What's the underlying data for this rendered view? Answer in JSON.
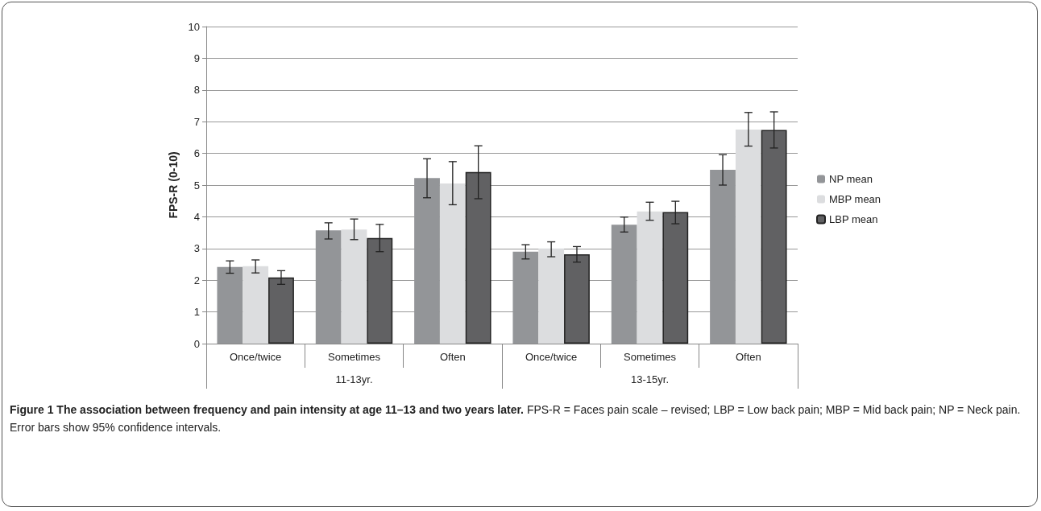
{
  "chart_data": {
    "type": "bar",
    "title": "Figure 1 The association between frequency and pain intensity at age 11–13 and two years later.",
    "ylabel": "FPS-R (0-10)",
    "categories": [
      "Once/twice",
      "Sometimes",
      "Often",
      "Once/twice",
      "Sometimes",
      "Often"
    ],
    "annotations": [
      "11-13yr.",
      "13-15yr.",
      "FPS-R = Faces pain scale – revised; LBP = Low back pain; MBP = Mid back pain; NP = Neck pain. Error bars show 95% confidence intervals."
    ],
    "series": [
      {
        "name": "NP mean",
        "color": "#939598",
        "values": [
          2.42,
          3.57,
          5.22,
          2.9,
          3.75,
          5.48
        ],
        "errors": [
          [
            2.22,
            2.61
          ],
          [
            3.3,
            3.81
          ],
          [
            4.6,
            5.83
          ],
          [
            2.67,
            3.12
          ],
          [
            3.52,
            3.99
          ],
          [
            5.0,
            5.96
          ]
        ]
      },
      {
        "name": "MBP mean",
        "color": "#dcdddf",
        "values": [
          2.44,
          3.6,
          5.05,
          3.0,
          4.17,
          6.75
        ],
        "errors": [
          [
            2.23,
            2.64
          ],
          [
            3.28,
            3.93
          ],
          [
            4.38,
            5.74
          ],
          [
            2.74,
            3.21
          ],
          [
            3.89,
            4.46
          ],
          [
            6.23,
            7.29
          ]
        ]
      },
      {
        "name": "LBP mean",
        "color": "#616163",
        "values": [
          2.09,
          3.33,
          5.41,
          2.82,
          4.15,
          6.74
        ],
        "errors": [
          [
            1.87,
            2.3
          ],
          [
            2.9,
            3.76
          ],
          [
            4.57,
            6.24
          ],
          [
            2.57,
            3.06
          ],
          [
            3.78,
            4.49
          ],
          [
            6.17,
            7.31
          ]
        ]
      }
    ],
    "ylim": [
      0,
      10
    ],
    "yticks": [
      0,
      1,
      2,
      3,
      4,
      5,
      6,
      7,
      8,
      9,
      10
    ],
    "grid": "y",
    "legend": "right"
  }
}
